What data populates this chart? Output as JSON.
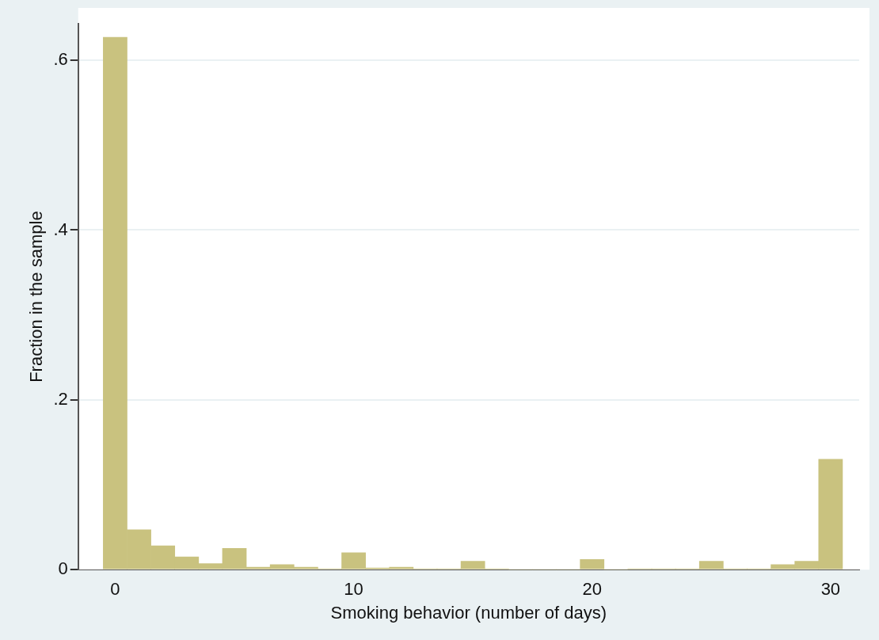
{
  "chart_data": {
    "type": "histogram",
    "xlabel": "Smoking behavior (number of days)",
    "ylabel": "Fraction in the sample",
    "bins": [
      -0.5,
      0.5,
      1.5,
      2.5,
      3.5,
      4.5,
      5.5,
      6.5,
      7.5,
      8.5,
      9.5,
      10.5,
      11.5,
      12.5,
      13.5,
      14.5,
      15.5,
      16.5,
      17.5,
      18.5,
      19.5,
      20.5,
      21.5,
      22.5,
      23.5,
      24.5,
      25.5,
      26.5,
      27.5,
      28.5,
      29.5,
      30.5
    ],
    "values": [
      0.627,
      0.047,
      0.028,
      0.015,
      0.007,
      0.025,
      0.003,
      0.006,
      0.003,
      0.001,
      0.02,
      0.002,
      0.003,
      0.001,
      0.001,
      0.01,
      0.001,
      0,
      0,
      0,
      0.012,
      0,
      0.001,
      0.001,
      0.001,
      0.01,
      0.001,
      0.001,
      0.006,
      0.01,
      0.13
    ],
    "color": "#c9c27f",
    "xlim": [
      -1.55,
      31.2
    ],
    "ylim": [
      0,
      0.643
    ],
    "xticks": [
      0,
      10,
      20,
      30
    ],
    "yticks": [
      0,
      {
        "value": 0.2,
        "label": ".2"
      },
      {
        "value": 0.4,
        "label": ".4"
      },
      {
        "value": 0.6,
        "label": ".6"
      }
    ],
    "grid": "y"
  }
}
